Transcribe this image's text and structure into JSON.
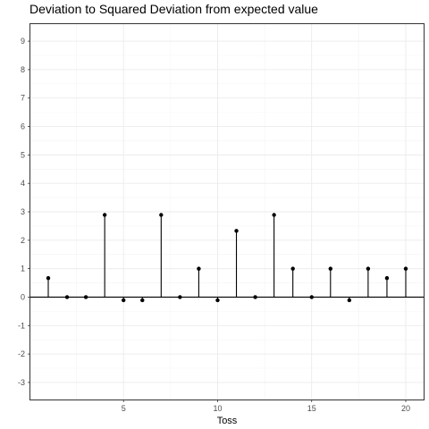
{
  "chart_data": {
    "type": "lollipop",
    "title": "Deviation to Squared Deviation from expected value",
    "xlabel": "Toss",
    "ylabel": "",
    "xlim": [
      0.05,
      20.95
    ],
    "ylim": [
      -3.6,
      9.6
    ],
    "x_ticks": [
      5,
      10,
      15,
      20
    ],
    "y_ticks": [
      -3,
      -2,
      -1,
      0,
      1,
      2,
      3,
      4,
      5,
      6,
      7,
      8,
      9
    ],
    "grid": true,
    "baseline": 0,
    "x": [
      1,
      2,
      3,
      4,
      5,
      6,
      7,
      8,
      9,
      10,
      11,
      12,
      13,
      14,
      15,
      16,
      17,
      18,
      19,
      20
    ],
    "values": [
      0.67,
      0,
      0,
      2.89,
      -0.11,
      -0.11,
      2.89,
      0,
      1,
      -0.11,
      2.33,
      0,
      2.89,
      1,
      0,
      1,
      -0.11,
      1,
      0.67,
      1
    ]
  }
}
